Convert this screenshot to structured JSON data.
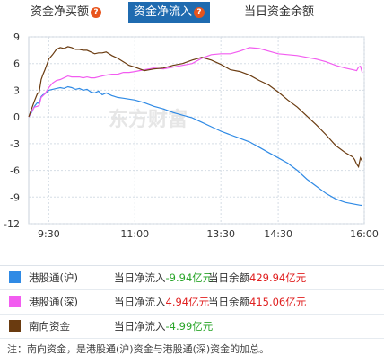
{
  "tabs": [
    {
      "label": "资金净买额",
      "icon": "help-icon",
      "active": false
    },
    {
      "label": "资金净流入",
      "icon": "help-icon",
      "active": true
    },
    {
      "label": "当日资金余额",
      "active": false
    }
  ],
  "colors": {
    "hk_sh": "#2f8ae5",
    "hk_sz": "#f25cf0",
    "southbound": "#6a3b10",
    "tab_active": "#1f6bb0"
  },
  "watermark": "东方财富",
  "legend": [
    {
      "name": "港股通(沪)",
      "flow_label": "当日净流入",
      "flow_value": "-9.94亿元",
      "balance_label": "当日余额",
      "balance_value": "429.94亿元"
    },
    {
      "name": "港股通(深)",
      "flow_label": "当日净流入",
      "flow_value": "4.94亿元",
      "balance_label": "当日余额",
      "balance_value": "415.06亿元"
    },
    {
      "name": "南向资金",
      "flow_label": "当日净流入",
      "flow_value": "-4.99亿元"
    }
  ],
  "note": "注：南向资金，是港股通(沪)资金与港股通(深)资金的加总。",
  "chart_data": {
    "type": "line",
    "x_range_minutes": [
      0,
      330
    ],
    "x_ticks": [
      {
        "label": "9:30",
        "t": 30
      },
      {
        "label": "11:00",
        "t": 120
      },
      {
        "label": "13:30",
        "t": 210
      },
      {
        "label": "14:30",
        "t": 270
      },
      {
        "label": "16:00",
        "t": 360
      }
    ],
    "ylim": [
      -12,
      9
    ],
    "y_ticks": [
      9,
      6,
      3,
      0,
      -3,
      -6,
      -9,
      -12
    ],
    "grid": true,
    "series": [
      {
        "name": "港股通(沪)",
        "color": "#2f8ae5",
        "points": [
          [
            9,
            0
          ],
          [
            12,
            0.5
          ],
          [
            15,
            1.2
          ],
          [
            18,
            1.6
          ],
          [
            20,
            1.5
          ],
          [
            22,
            2.3
          ],
          [
            24,
            2.5
          ],
          [
            26,
            2.6
          ],
          [
            30,
            3.0
          ],
          [
            34,
            3.1
          ],
          [
            38,
            3.2
          ],
          [
            42,
            3.3
          ],
          [
            46,
            3.2
          ],
          [
            50,
            3.4
          ],
          [
            54,
            3.3
          ],
          [
            58,
            3.1
          ],
          [
            62,
            3.2
          ],
          [
            66,
            3.0
          ],
          [
            70,
            3.1
          ],
          [
            74,
            2.8
          ],
          [
            78,
            2.7
          ],
          [
            82,
            2.9
          ],
          [
            86,
            2.5
          ],
          [
            90,
            2.7
          ],
          [
            96,
            2.4
          ],
          [
            102,
            2.2
          ],
          [
            108,
            2.1
          ],
          [
            114,
            2.0
          ],
          [
            120,
            1.9
          ],
          [
            130,
            1.6
          ],
          [
            140,
            1.2
          ],
          [
            150,
            0.9
          ],
          [
            160,
            0.5
          ],
          [
            170,
            0.2
          ],
          [
            180,
            -0.1
          ],
          [
            190,
            -0.6
          ],
          [
            200,
            -1.1
          ],
          [
            210,
            -1.6
          ],
          [
            220,
            -2.0
          ],
          [
            230,
            -2.4
          ],
          [
            240,
            -2.8
          ],
          [
            250,
            -3.4
          ],
          [
            260,
            -4.0
          ],
          [
            270,
            -4.6
          ],
          [
            280,
            -5.2
          ],
          [
            290,
            -6.0
          ],
          [
            300,
            -7.0
          ],
          [
            310,
            -7.8
          ],
          [
            320,
            -8.6
          ],
          [
            330,
            -9.2
          ],
          [
            340,
            -9.6
          ],
          [
            350,
            -9.8
          ],
          [
            355,
            -9.9
          ],
          [
            358,
            -9.94
          ]
        ]
      },
      {
        "name": "港股通(深)",
        "color": "#f25cf0",
        "points": [
          [
            9,
            0
          ],
          [
            12,
            0.6
          ],
          [
            15,
            1.1
          ],
          [
            18,
            1.2
          ],
          [
            20,
            1.3
          ],
          [
            22,
            2.2
          ],
          [
            24,
            2.4
          ],
          [
            26,
            2.6
          ],
          [
            30,
            3.3
          ],
          [
            34,
            3.8
          ],
          [
            38,
            4.1
          ],
          [
            42,
            4.2
          ],
          [
            46,
            4.4
          ],
          [
            50,
            4.6
          ],
          [
            54,
            4.5
          ],
          [
            58,
            4.5
          ],
          [
            62,
            4.5
          ],
          [
            66,
            4.4
          ],
          [
            70,
            4.5
          ],
          [
            74,
            4.4
          ],
          [
            78,
            4.4
          ],
          [
            82,
            4.5
          ],
          [
            86,
            4.6
          ],
          [
            90,
            4.7
          ],
          [
            96,
            4.8
          ],
          [
            102,
            4.8
          ],
          [
            108,
            5.0
          ],
          [
            114,
            5.0
          ],
          [
            120,
            5.1
          ],
          [
            130,
            5.3
          ],
          [
            140,
            5.5
          ],
          [
            150,
            5.4
          ],
          [
            160,
            5.6
          ],
          [
            170,
            5.8
          ],
          [
            180,
            6.0
          ],
          [
            190,
            6.6
          ],
          [
            200,
            7.0
          ],
          [
            210,
            7.1
          ],
          [
            220,
            7.1
          ],
          [
            230,
            7.4
          ],
          [
            240,
            7.8
          ],
          [
            250,
            7.7
          ],
          [
            260,
            7.4
          ],
          [
            270,
            7.1
          ],
          [
            280,
            7.0
          ],
          [
            290,
            6.9
          ],
          [
            300,
            6.7
          ],
          [
            310,
            6.5
          ],
          [
            320,
            6.2
          ],
          [
            330,
            5.8
          ],
          [
            340,
            5.5
          ],
          [
            348,
            5.3
          ],
          [
            352,
            5.2
          ],
          [
            354,
            5.6
          ],
          [
            356,
            5.7
          ],
          [
            358,
            4.94
          ]
        ]
      },
      {
        "name": "南向资金",
        "color": "#6a3b10",
        "points": [
          [
            9,
            0
          ],
          [
            12,
            0.9
          ],
          [
            15,
            1.8
          ],
          [
            18,
            2.6
          ],
          [
            20,
            2.8
          ],
          [
            22,
            4.2
          ],
          [
            24,
            4.8
          ],
          [
            26,
            5.3
          ],
          [
            30,
            6.5
          ],
          [
            34,
            7.0
          ],
          [
            38,
            7.6
          ],
          [
            42,
            7.8
          ],
          [
            46,
            7.7
          ],
          [
            50,
            7.9
          ],
          [
            54,
            7.8
          ],
          [
            58,
            7.6
          ],
          [
            62,
            7.6
          ],
          [
            66,
            7.5
          ],
          [
            70,
            7.5
          ],
          [
            74,
            7.3
          ],
          [
            78,
            7.1
          ],
          [
            82,
            7.2
          ],
          [
            86,
            7.2
          ],
          [
            90,
            7.3
          ],
          [
            96,
            6.9
          ],
          [
            102,
            6.6
          ],
          [
            108,
            6.2
          ],
          [
            114,
            5.8
          ],
          [
            120,
            5.6
          ],
          [
            130,
            5.2
          ],
          [
            140,
            5.4
          ],
          [
            150,
            5.5
          ],
          [
            160,
            5.8
          ],
          [
            170,
            6.0
          ],
          [
            180,
            6.4
          ],
          [
            190,
            6.7
          ],
          [
            200,
            6.4
          ],
          [
            210,
            5.9
          ],
          [
            220,
            5.3
          ],
          [
            230,
            5.1
          ],
          [
            240,
            4.7
          ],
          [
            250,
            4.1
          ],
          [
            260,
            3.6
          ],
          [
            270,
            2.8
          ],
          [
            280,
            1.9
          ],
          [
            290,
            1.1
          ],
          [
            300,
            0.1
          ],
          [
            310,
            -0.9
          ],
          [
            320,
            -2.0
          ],
          [
            330,
            -3.2
          ],
          [
            340,
            -4.0
          ],
          [
            348,
            -4.5
          ],
          [
            350,
            -4.8
          ],
          [
            352,
            -5.3
          ],
          [
            354,
            -5.6
          ],
          [
            356,
            -4.6
          ],
          [
            358,
            -4.99
          ]
        ]
      }
    ]
  }
}
